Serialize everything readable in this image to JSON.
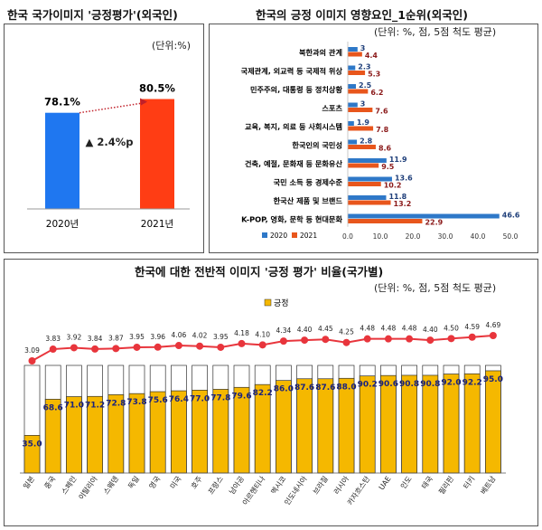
{
  "chart_data": [
    {
      "type": "bar",
      "title": "한국 국가이미지 '긍정평가'(외국인)",
      "unit": "(단위:%)",
      "categories": [
        "2020년",
        "2021년"
      ],
      "values": [
        78.1,
        80.5
      ],
      "value_labels": [
        "78.1%",
        "80.5%"
      ],
      "change_label": "▲ 2.4%p",
      "colors": [
        "#1f77f0",
        "#ff3d14"
      ],
      "ylim": [
        0,
        100
      ]
    },
    {
      "type": "bar",
      "orientation": "horizontal",
      "title": "한국의 긍정 이미지 영향요인_1순위(외국인)",
      "unit": "(단위: %, 점, 5점 척도 평균)",
      "categories": [
        "북한과의 관계",
        "국제관계, 외교력 등 국제적 위상",
        "민주주의, 대통령 등 정치상황",
        "스포츠",
        "교육, 복지, 의료 등 사회시스템",
        "한국인의 국민성",
        "건축, 예절, 문화재 등 문화유산",
        "국민 소득 등 경제수준",
        "한국산 제품 및 브랜드",
        "K-POP, 영화, 문학 등 현대문화"
      ],
      "series": [
        {
          "name": "2020",
          "color": "#2e78c8",
          "values": [
            3,
            2.3,
            2.5,
            3,
            1.9,
            2.8,
            11.9,
            13.6,
            11.8,
            46.6
          ],
          "labels": [
            "3",
            "2.3",
            "2.5",
            "3",
            "1.9",
            "2.8",
            "11.9",
            "13.6",
            "11.8",
            "46.6"
          ]
        },
        {
          "name": "2021",
          "color": "#e8561c",
          "values": [
            4.4,
            5.3,
            6.2,
            7.6,
            7.8,
            8.6,
            9.5,
            10.2,
            13.2,
            22.9
          ],
          "labels": [
            "4.4",
            "5.3",
            "6.2",
            "7.6",
            "7.8",
            "8.6",
            "9.5",
            "10.2",
            "13.2",
            "22.9"
          ]
        }
      ],
      "xticks": [
        "0.0",
        "10.0",
        "20.0",
        "30.0",
        "40.0",
        "50.0"
      ],
      "xlim": [
        0,
        50
      ],
      "legend": "bottom-left"
    },
    {
      "type": "bar",
      "title": "한국에 대한 전반적 이미지 '긍정 평가' 비율(국가별)",
      "unit": "(단위: %, 점, 5점 척도 평균)",
      "legend_label": "긍정",
      "legend": "top-center",
      "bar_color": "#f5b800",
      "line_color": "#e8353c",
      "categories": [
        "일본",
        "중국",
        "스페인",
        "이탈리아",
        "스웨덴",
        "독일",
        "영국",
        "미국",
        "호주",
        "프랑스",
        "남아공",
        "아르헨티나",
        "멕시코",
        "인도네시아",
        "브라질",
        "러시아",
        "카자흐스탄",
        "UAE",
        "인도",
        "태국",
        "필리핀",
        "터키",
        "베트남"
      ],
      "values": [
        35.0,
        68.6,
        71.0,
        71.2,
        72.8,
        73.8,
        75.6,
        76.4,
        77.0,
        77.8,
        79.6,
        82.2,
        86.0,
        87.6,
        87.6,
        88.0,
        90.2,
        90.6,
        90.8,
        90.8,
        92.0,
        92.2,
        95.0
      ],
      "value_labels": [
        "35.0",
        "68.6",
        "71.0",
        "71.2",
        "72.8",
        "73.8",
        "75.6",
        "76.4",
        "77.0",
        "77.8",
        "79.6",
        "82.2",
        "86.0",
        "87.6",
        "87.6",
        "88.0",
        "90.2",
        "90.6",
        "90.8",
        "90.8",
        "92.0",
        "92.2",
        "95.0"
      ],
      "scores": [
        3.09,
        3.83,
        3.92,
        3.84,
        3.87,
        3.95,
        3.96,
        4.06,
        4.02,
        3.95,
        4.18,
        4.1,
        4.34,
        4.4,
        4.45,
        4.25,
        4.48,
        4.48,
        4.48,
        4.4,
        4.5,
        4.59,
        4.69
      ],
      "score_labels": [
        "3.09",
        "3.83",
        "3.92",
        "3.84",
        "3.87",
        "3.95",
        "3.96",
        "4.06",
        "4.02",
        "3.95",
        "4.18",
        "4.10",
        "4.34",
        "4.40",
        "4.45",
        "4.25",
        "4.48",
        "4.48",
        "4.48",
        "4.40",
        "4.50",
        "4.59",
        "4.69"
      ],
      "ylim": [
        0,
        100
      ]
    }
  ]
}
